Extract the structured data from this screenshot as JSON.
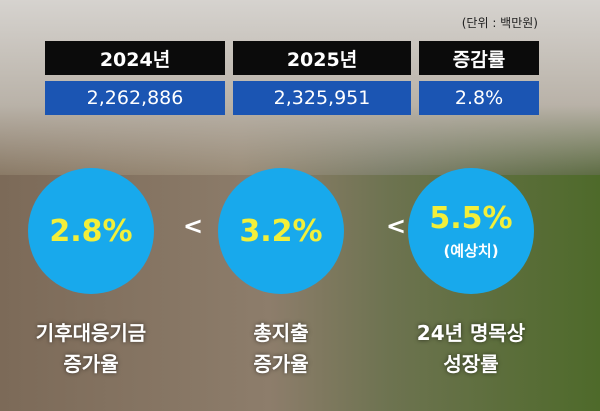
{
  "unit_note": "(단위 : 백만원)",
  "table": {
    "header": [
      "2024년",
      "2025년",
      "증감률"
    ],
    "rows": [
      [
        "2,262,886",
        "2,325,951",
        "2.8%"
      ]
    ]
  },
  "comparisons": [
    {
      "value": "2.8%",
      "label": [
        "기후대응기금",
        "증가율"
      ]
    },
    {
      "value": "3.2%",
      "label": [
        "총지출",
        "증가율"
      ]
    },
    {
      "value": "5.5%",
      "note": "(예상치)",
      "label": [
        "24년 명목상",
        "성장률"
      ]
    }
  ],
  "operators": [
    "<",
    "<"
  ]
}
